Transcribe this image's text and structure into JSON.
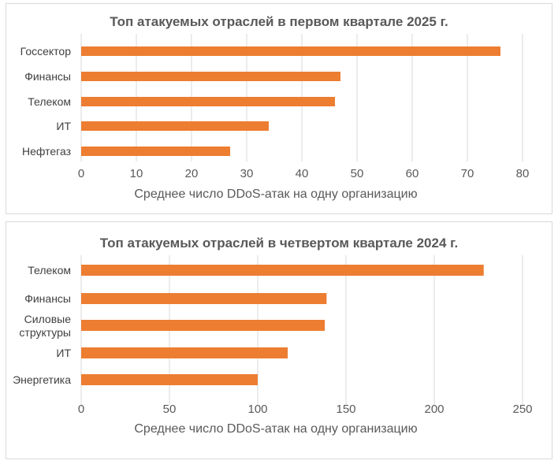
{
  "chart_data": [
    {
      "type": "bar",
      "orientation": "horizontal",
      "title": "Топ атакуемых отраслей в первом квартале 2025 г.",
      "xlabel": "Среднее число DDoS-атак на одну организацию",
      "ylabel": "",
      "categories": [
        "Госсектор",
        "Финансы",
        "Телеком",
        "ИТ",
        "Нефтегаз"
      ],
      "values": [
        76,
        47,
        46,
        34,
        27
      ],
      "xlim": [
        0,
        80
      ],
      "ticks": [
        0,
        10,
        20,
        30,
        40,
        50,
        60,
        70,
        80
      ],
      "grid": true,
      "color": "#ED7D31"
    },
    {
      "type": "bar",
      "orientation": "horizontal",
      "title": "Топ атакуемых отраслей в четвертом квартале 2024 г.",
      "xlabel": "Среднее число DDoS-атак на одну организацию",
      "ylabel": "",
      "categories": [
        "Телеком",
        "Финансы",
        "Силовые структуры",
        "ИТ",
        "Энергетика"
      ],
      "category_lines": [
        [
          "Телеком"
        ],
        [
          "Финансы"
        ],
        [
          "Силовые",
          "структуры"
        ],
        [
          "ИТ"
        ],
        [
          "Энергетика"
        ]
      ],
      "values": [
        228,
        139,
        138,
        117,
        100
      ],
      "xlim": [
        0,
        250
      ],
      "ticks": [
        0,
        50,
        100,
        150,
        200,
        250
      ],
      "grid": true,
      "color": "#ED7D31"
    }
  ]
}
